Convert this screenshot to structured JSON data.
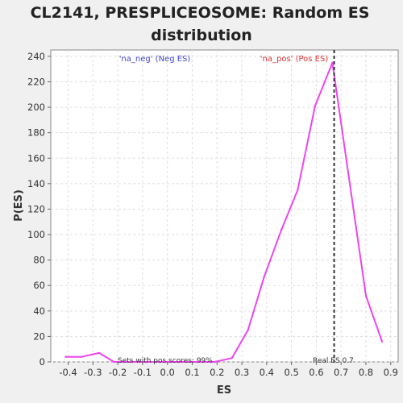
{
  "chart_data": {
    "type": "line",
    "title_line1": "CL2141, PRESPLICEOSOME: Random ES",
    "title_line2": "distribution",
    "xlabel": "ES",
    "ylabel": "P(ES)",
    "xlim": [
      -0.47,
      0.93
    ],
    "ylim": [
      0,
      245
    ],
    "xticks": [
      -0.4,
      -0.3,
      -0.2,
      -0.1,
      0.0,
      0.1,
      0.2,
      0.3,
      0.4,
      0.5,
      0.6,
      0.7,
      0.8,
      0.9
    ],
    "xtick_labels": [
      "-0.4",
      "-0.3",
      "-0.2",
      "-0.1",
      "0.0",
      "0.1",
      "0.2",
      "0.3",
      "0.4",
      "0.5",
      "0.6",
      "0.7",
      "0.8",
      "0.9"
    ],
    "yticks": [
      0,
      20,
      40,
      60,
      80,
      100,
      120,
      140,
      160,
      180,
      200,
      220,
      240
    ],
    "ytick_labels": [
      "0",
      "20",
      "40",
      "60",
      "80",
      "100",
      "120",
      "140",
      "160",
      "180",
      "200",
      "220",
      "240"
    ],
    "grid": true,
    "series": [
      {
        "color": "#ee44ee",
        "x": [
          -0.41,
          -0.345,
          -0.275,
          -0.215,
          -0.15,
          -0.08,
          -0.015,
          0.05,
          0.12,
          0.19,
          0.26,
          0.325,
          0.39,
          0.46,
          0.525,
          0.595,
          0.665,
          0.73,
          0.8,
          0.865
        ],
        "y": [
          4,
          4,
          7,
          0,
          0,
          0,
          0,
          0,
          0,
          0,
          3,
          25,
          67,
          104,
          135,
          201,
          235,
          147,
          52,
          16
        ]
      }
    ],
    "real_es": 0.672,
    "annotations": {
      "neg_label": "'na_neg' (Neg ES)",
      "pos_label": "'na_pos' (Pos ES)",
      "pos_scores": "Sets with pos scores: 99%",
      "real_es_label": "Real ES 0.7"
    },
    "colors": {
      "neg_label": "#4444dd",
      "pos_label": "#dd3333",
      "real_es_line": "#333333"
    }
  }
}
